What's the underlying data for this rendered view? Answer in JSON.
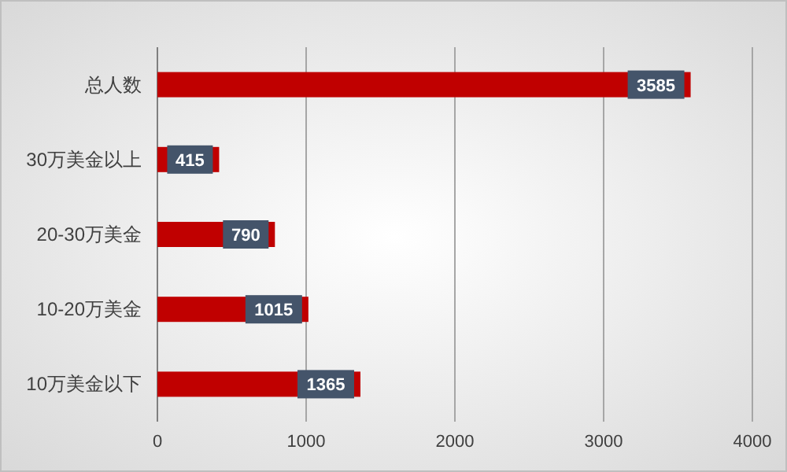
{
  "chart_data": {
    "type": "bar",
    "orientation": "horizontal",
    "categories": [
      "总人数",
      "30万美金以上",
      "20-30万美金",
      "10-20万美金",
      "10万美金以下"
    ],
    "values": [
      3585,
      415,
      790,
      1015,
      1365
    ],
    "color": "#c00000",
    "xlim": [
      0,
      4000
    ],
    "xticks": [
      0,
      1000,
      2000,
      3000,
      4000
    ],
    "grid": "x",
    "data_labels": true
  }
}
